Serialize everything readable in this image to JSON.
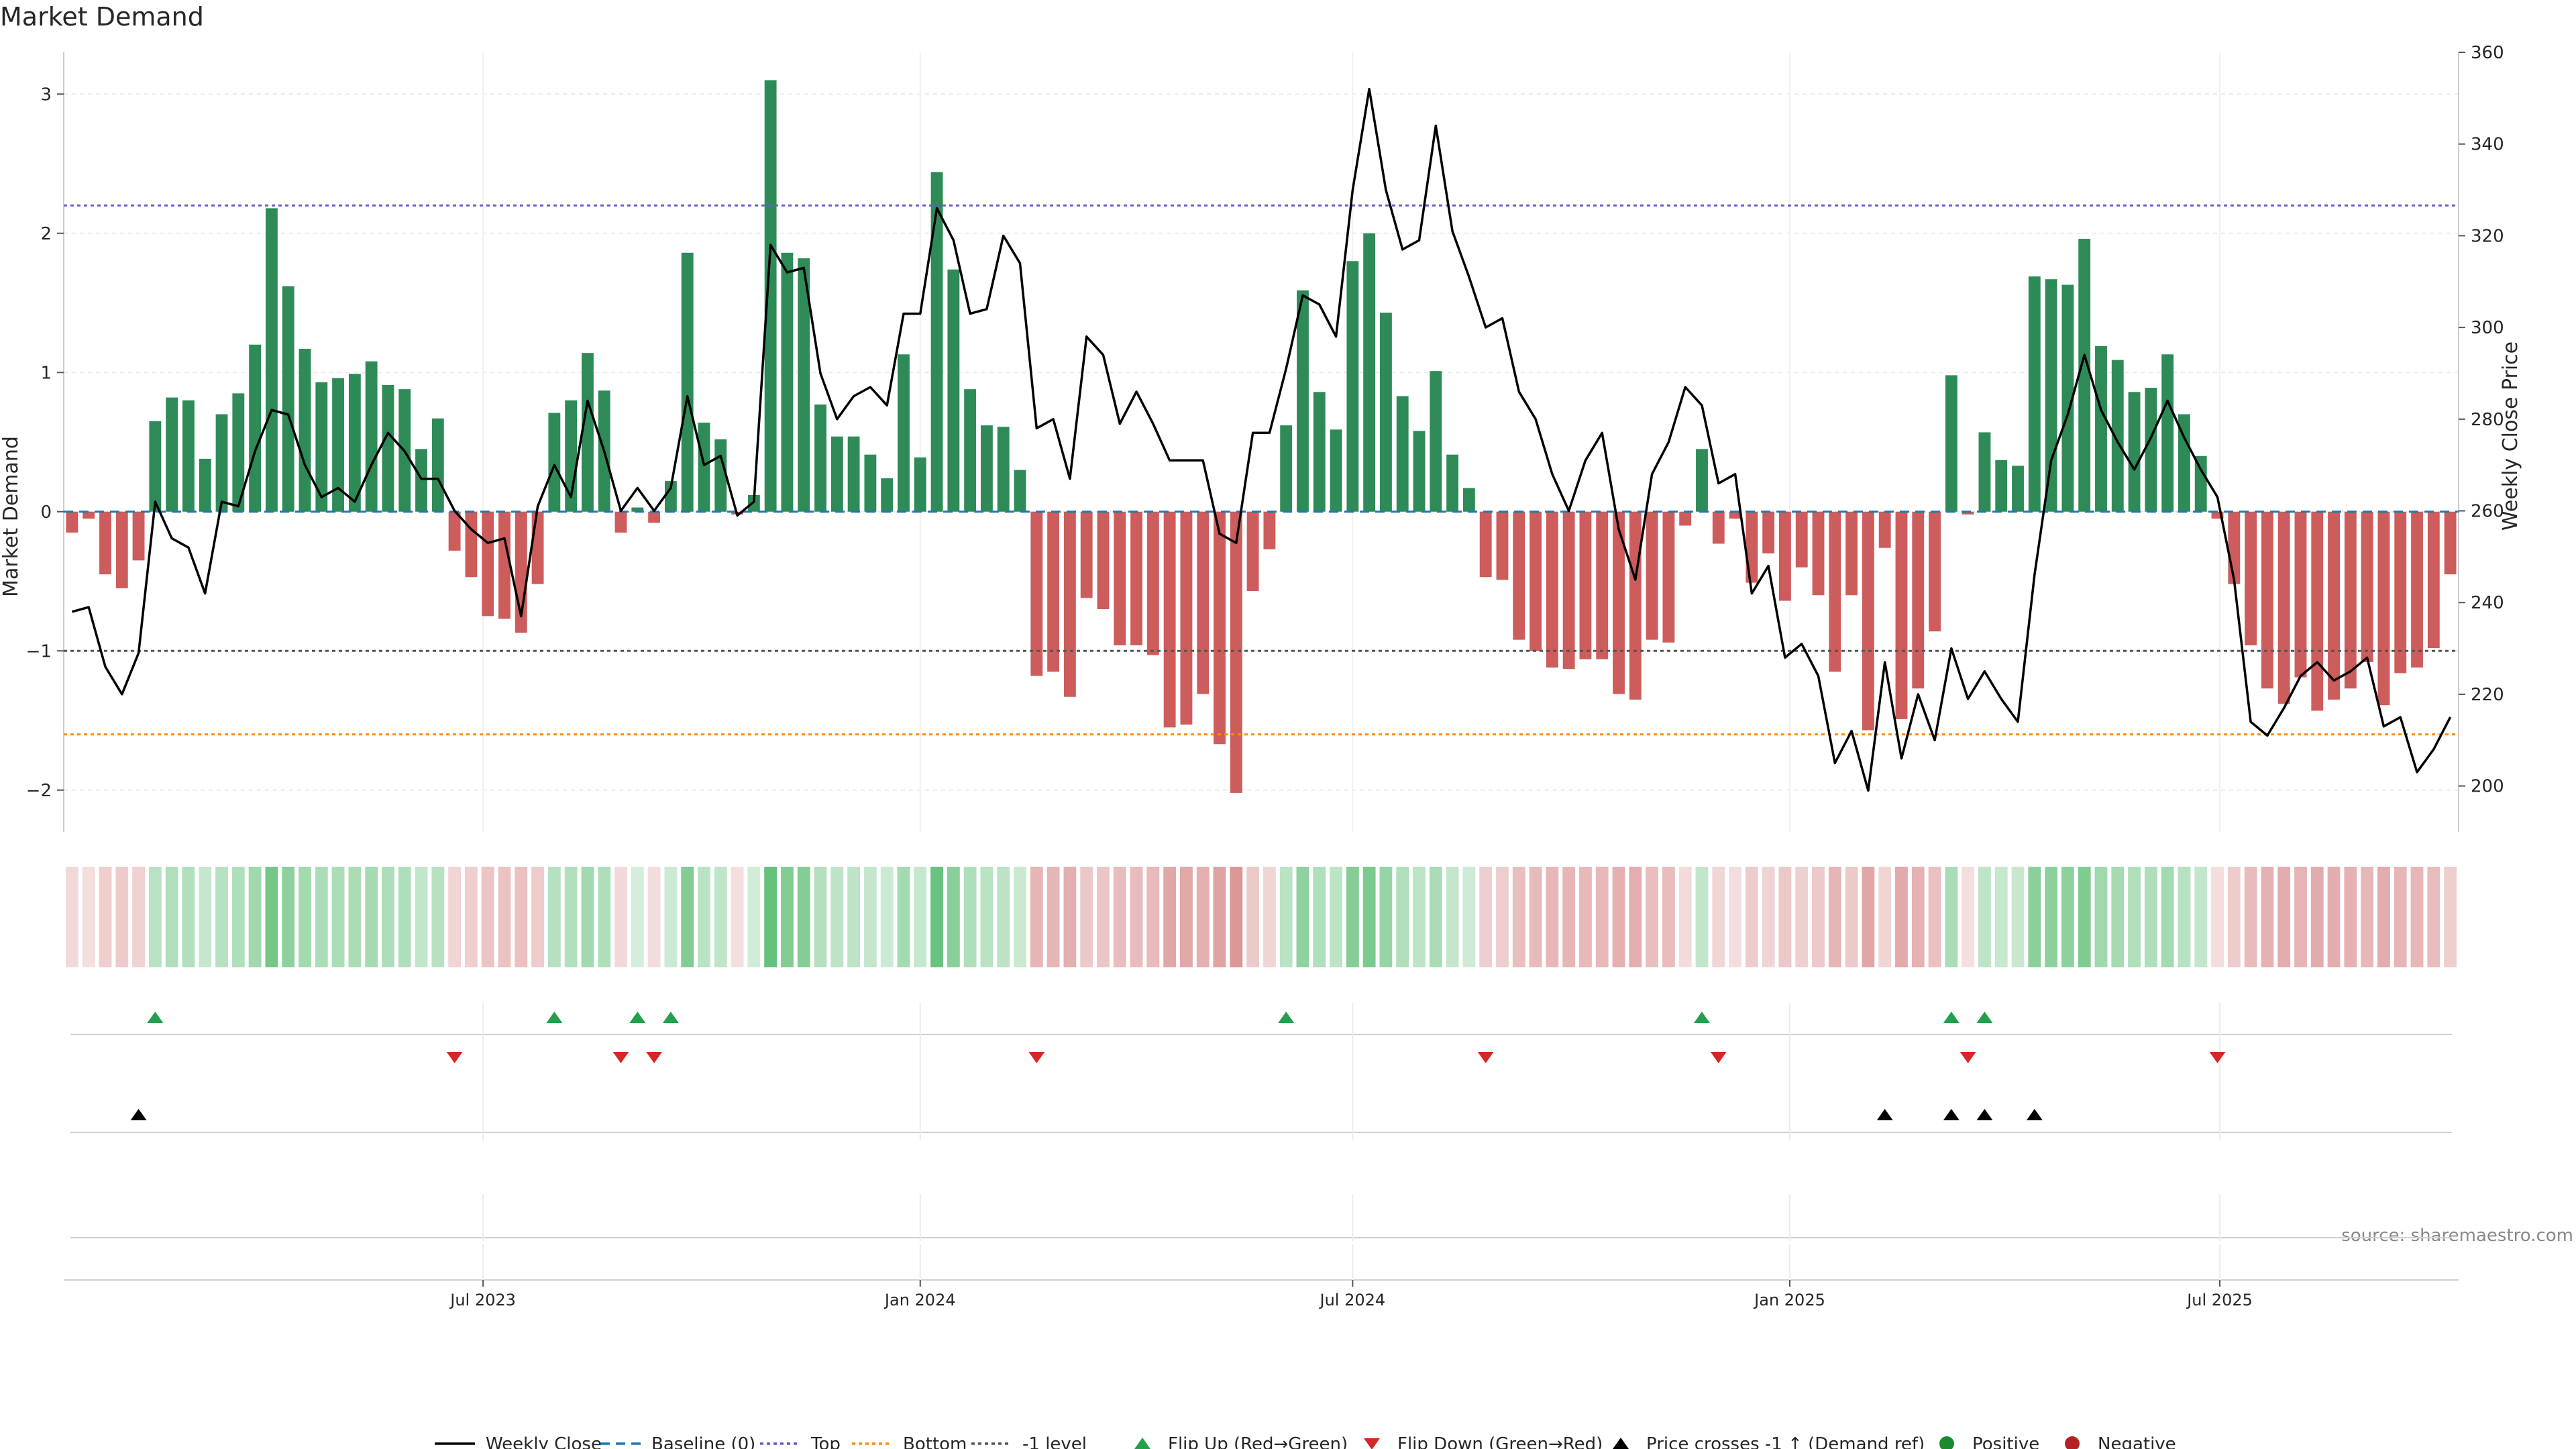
{
  "chart_data": {
    "type": "bar",
    "title": "Market Demand",
    "ylabel_left": "Market Demand",
    "ylabel_right": "Weekly Close Price",
    "source": "source: sharemaestro.com",
    "ylim_left": [
      -2.3,
      3.3
    ],
    "ylim_right": [
      190,
      360
    ],
    "left_ticks": [
      3,
      2,
      1,
      0,
      -1,
      -2
    ],
    "left_tick_labels": [
      "3",
      "2",
      "1",
      "0",
      "−1",
      "−2"
    ],
    "right_ticks": [
      360,
      340,
      320,
      300,
      280,
      260,
      240,
      220,
      200
    ],
    "x_start": "2023-01-09",
    "x_ticks": [
      "2023-07-01",
      "2024-01-01",
      "2024-07-01",
      "2025-01-01",
      "2025-07-01"
    ],
    "x_tick_labels": [
      "Jul 2023",
      "Jan 2024",
      "Jul 2024",
      "Jan 2025",
      "Jul 2025"
    ],
    "hlines": {
      "top": 2.2,
      "bottom": -1.6,
      "minus_one": -1.0,
      "baseline": 0
    },
    "demand": [
      -0.15,
      -0.05,
      -0.45,
      -0.55,
      -0.35,
      0.65,
      0.82,
      0.8,
      0.38,
      0.7,
      0.85,
      1.2,
      2.18,
      1.62,
      1.17,
      0.93,
      0.96,
      0.99,
      1.08,
      0.91,
      0.88,
      0.45,
      0.67,
      -0.28,
      -0.47,
      -0.75,
      -0.77,
      -0.87,
      -0.52,
      0.71,
      0.8,
      1.14,
      0.87,
      -0.15,
      0.03,
      -0.08,
      0.22,
      1.86,
      0.64,
      0.52,
      -0.02,
      0.12,
      3.1,
      1.86,
      1.82,
      0.77,
      0.54,
      0.54,
      0.41,
      0.24,
      1.13,
      0.39,
      2.44,
      1.74,
      0.88,
      0.62,
      0.61,
      0.3,
      -1.18,
      -1.15,
      -1.33,
      -0.62,
      -0.7,
      -0.96,
      -0.96,
      -1.03,
      -1.55,
      -1.53,
      -1.31,
      -1.67,
      -2.02,
      -0.57,
      -0.27,
      0.62,
      1.59,
      0.86,
      0.59,
      1.8,
      2.0,
      1.43,
      0.83,
      0.58,
      1.01,
      0.41,
      0.17,
      -0.47,
      -0.49,
      -0.92,
      -1.0,
      -1.12,
      -1.13,
      -1.06,
      -1.06,
      -1.31,
      -1.35,
      -0.92,
      -0.94,
      -0.1,
      0.45,
      -0.23,
      -0.05,
      -0.51,
      -0.3,
      -0.64,
      -0.4,
      -0.6,
      -1.15,
      -0.6,
      -1.57,
      -0.26,
      -1.49,
      -1.27,
      -0.86,
      0.98,
      -0.02,
      0.57,
      0.37,
      0.33,
      1.69,
      1.67,
      1.63,
      1.96,
      1.19,
      1.09,
      0.86,
      0.89,
      1.13,
      0.7,
      0.4,
      -0.05,
      -0.52,
      -0.96,
      -1.27,
      -1.38,
      -1.19,
      -1.43,
      -1.35,
      -1.27,
      -1.08,
      -1.39,
      -1.16,
      -1.12,
      -0.98,
      -0.45
    ],
    "weekly_close": [
      238,
      239,
      226,
      220,
      229,
      262,
      254,
      252,
      242,
      262,
      261,
      273,
      282,
      281,
      270,
      263,
      265,
      262,
      270,
      277,
      273,
      267,
      267,
      260,
      256,
      253,
      254,
      237,
      261,
      270,
      263,
      284,
      273,
      260,
      265,
      260,
      265,
      285,
      270,
      272,
      259,
      262,
      318,
      312,
      313,
      290,
      280,
      285,
      287,
      283,
      303,
      303,
      326,
      319,
      303,
      304,
      320,
      314,
      278,
      280,
      267,
      298,
      294,
      279,
      286,
      279,
      271,
      271,
      271,
      255,
      253,
      277,
      277,
      291,
      307,
      305,
      298,
      330,
      352,
      330,
      317,
      319,
      344,
      321,
      311,
      300,
      302,
      286,
      280,
      268,
      260,
      271,
      277,
      256,
      245,
      268,
      275,
      287,
      283,
      266,
      268,
      242,
      248,
      228,
      231,
      224,
      205,
      212,
      199,
      227,
      206,
      220,
      210,
      230,
      219,
      225,
      219,
      214,
      246,
      271,
      281,
      294,
      282,
      275,
      269,
      276,
      284,
      276,
      269,
      263,
      245,
      214,
      211,
      217,
      224,
      227,
      223,
      225,
      228,
      213,
      215,
      203,
      208,
      215
    ],
    "flip_up_weeks": [
      5,
      29,
      34,
      36,
      73,
      98,
      113,
      115
    ],
    "flip_down_weeks": [
      23,
      33,
      35,
      58,
      85,
      99,
      114,
      129
    ],
    "price_cross_weeks": [
      4,
      109,
      113,
      115,
      118
    ],
    "legend": [
      "Weekly Close",
      "Baseline (0)",
      "Top",
      "Bottom",
      "-1 level",
      "Flip Up (Red→Green)",
      "Flip Down (Green→Red)",
      "Price crosses -1 ↑ (Demand ref)",
      "Positive",
      "Negative"
    ],
    "colors": {
      "positive_bar": "#2e8b57",
      "negative_bar": "#cd5c5c",
      "close_line": "#000000",
      "baseline": "#1f77b4",
      "top_line": "#6a5acd",
      "bottom_line": "#ff8c00",
      "minus_one_line": "#555555",
      "flip_up": "#22a04b",
      "flip_down": "#d62728",
      "price_cross": "#000000",
      "positive_dot": "#1a8a2e",
      "negative_dot": "#b22222"
    }
  }
}
